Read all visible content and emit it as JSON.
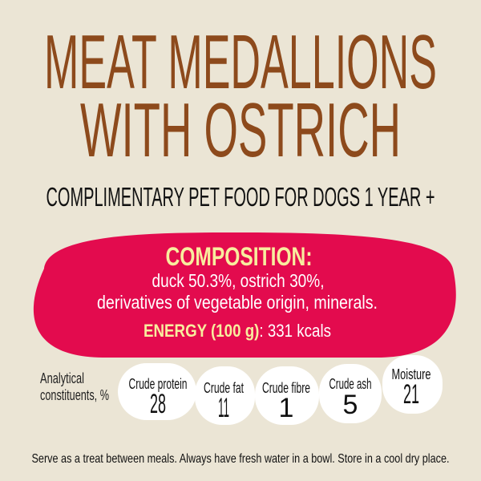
{
  "title": {
    "line1": "MEAT MEDALLIONS",
    "line2": "WITH OSTRICH"
  },
  "subtitle": "COMPLIMENTARY PET FOOD FOR DOGS 1 YEAR +",
  "composition": {
    "heading": "COMPOSITION:",
    "line1": "duck 50.3%, ostrich 30%,",
    "line2": "derivatives of vegetable origin, minerals.",
    "energy_label": "ENERGY (100 g)",
    "energy_value": ": 331 kcals"
  },
  "analytical": {
    "label_line1": "Analytical",
    "label_line2": "constituents, %",
    "items": [
      {
        "label": "Crude protein",
        "value": "28"
      },
      {
        "label": "Crude fat",
        "value": "11"
      },
      {
        "label": "Crude fibre",
        "value": "1"
      },
      {
        "label": "Crude ash",
        "value": "5"
      },
      {
        "label": "Moisture",
        "value": "21"
      }
    ]
  },
  "footer": "Serve as a treat between meals. Always have fresh water in a bowl. Store in a cool dry place.",
  "colors": {
    "background": "#ebe5d5",
    "title": "#8d4a1c",
    "blob": "#e30b4e",
    "highlight": "#f8ed9e"
  }
}
